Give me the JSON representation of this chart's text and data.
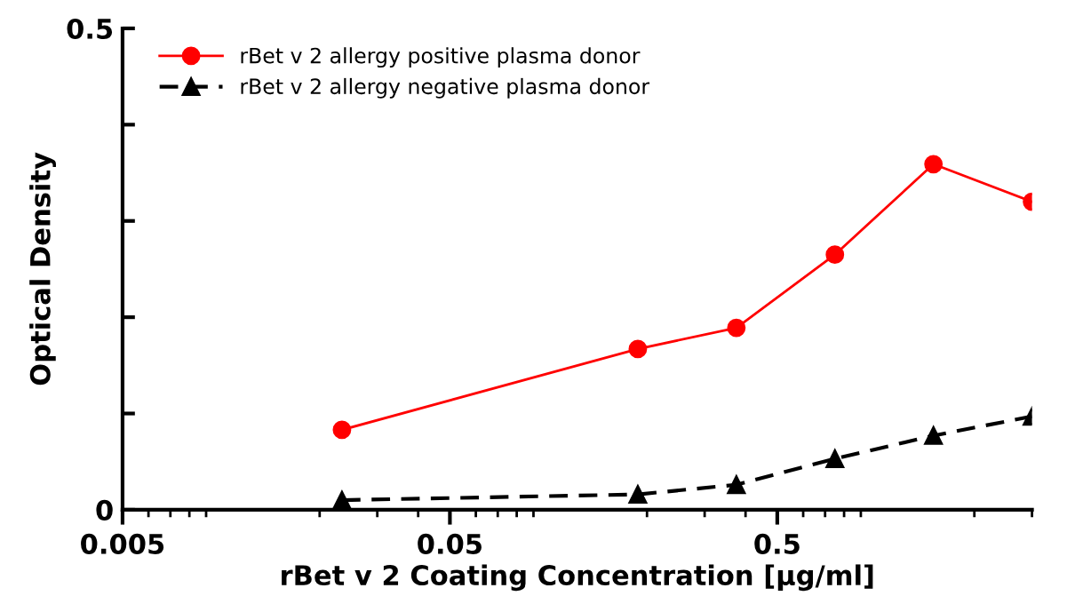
{
  "chart_data": {
    "type": "line",
    "xlabel": "rBet v 2 Coating Concentration [µg/ml]",
    "ylabel": "Optical Density",
    "log": "x",
    "xlim": [
      0.005,
      3
    ],
    "xticks": [
      0.005,
      0.05,
      0.5
    ],
    "ylim": [
      0,
      0.5
    ],
    "yticks": [
      0,
      {
        "value": 0.1,
        "label": null
      },
      {
        "value": 0.2,
        "label": null
      },
      {
        "value": 0.3,
        "label": null
      },
      {
        "value": 0.4,
        "label": null
      },
      0.5
    ],
    "grid": false,
    "legend": "top left",
    "x": [
      0.0234,
      0.1875,
      0.375,
      0.75,
      1.5,
      3
    ],
    "series": [
      {
        "name": "rBet v 2 allergy positive plasma donor",
        "color": "#ff0000",
        "marker": "circle",
        "line_style": "solid",
        "values": [
          0.083,
          0.167,
          0.189,
          0.265,
          0.359,
          0.32
        ]
      },
      {
        "name": "rBet v 2 allergy negative plasma donor",
        "color": "#000000",
        "marker": "triangle",
        "line_style": "dashed",
        "values": [
          0.01,
          0.016,
          0.026,
          0.053,
          0.077,
          0.097
        ]
      }
    ]
  }
}
